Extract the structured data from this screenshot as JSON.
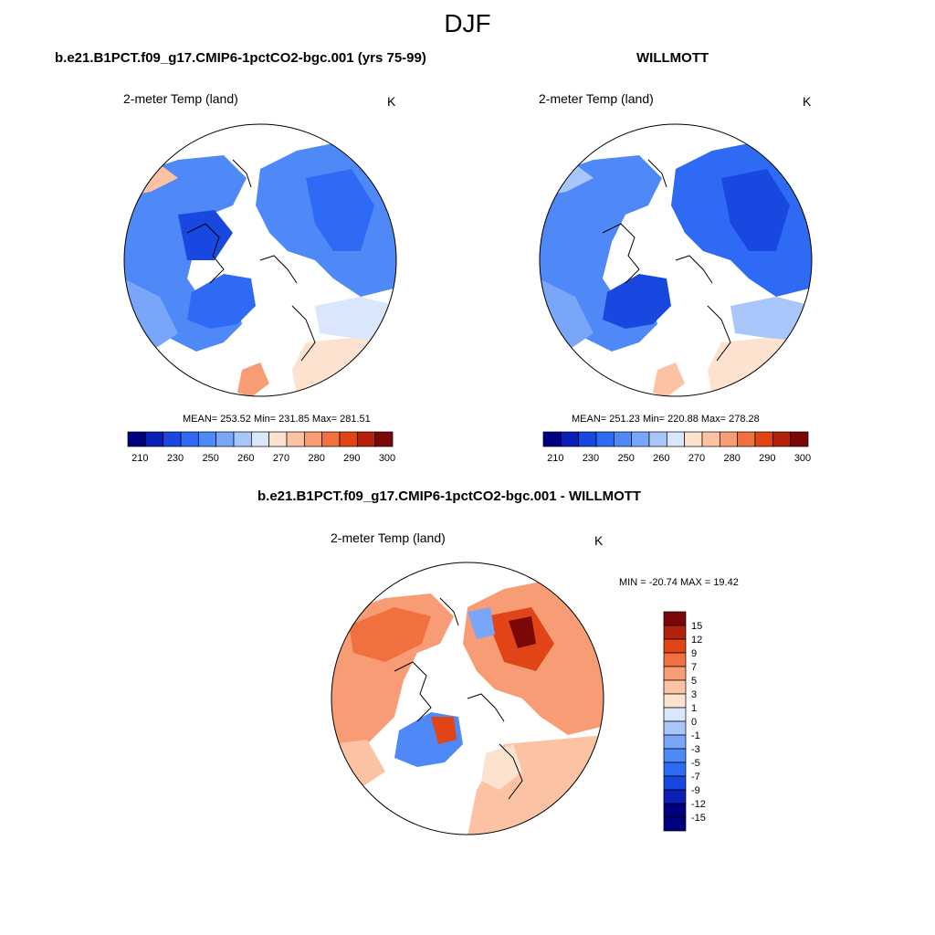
{
  "title": "DJF",
  "colors": {
    "ramp": [
      "#00007f",
      "#0a1fb5",
      "#1848e0",
      "#2f6af5",
      "#4f88f7",
      "#7aa6f9",
      "#a9c6fb",
      "#d9e6fc",
      "#fde2cf",
      "#fbc2a4",
      "#f79c74",
      "#f0703f",
      "#e14416",
      "#b3230b",
      "#7a0806"
    ],
    "coast": "#000000"
  },
  "panel_left": {
    "title": "b.e21.B1PCT.f09_g17.CMIP6-1pctCO2-bgc.001 (yrs 75-99)",
    "variable": "2-meter Temp (land)",
    "units": "K",
    "stats": "MEAN= 253.52  Min= 231.85  Max= 281.51"
  },
  "panel_right": {
    "title": "WILLMOTT",
    "variable": "2-meter Temp (land)",
    "units": "K",
    "stats": "MEAN= 251.23  Min= 220.88  Max= 278.28"
  },
  "panel_diff": {
    "title": "b.e21.B1PCT.f09_g17.CMIP6-1pctCO2-bgc.001 - WILLMOTT",
    "variable": "2-meter Temp (land)",
    "units": "K",
    "stats": "MIN = -20.74 MAX =  19.42"
  },
  "chart_data": [
    {
      "type": "heatmap",
      "title": "b.e21.B1PCT.f09_g17.CMIP6-1pctCO2-bgc.001 (yrs 75-99)",
      "variable": "2-meter Temp (land)",
      "units": "K",
      "mean": 253.52,
      "min": 231.85,
      "max": 281.51,
      "colorbar_levels": [
        205,
        210,
        220,
        230,
        240,
        250,
        255,
        260,
        265,
        270,
        275,
        280,
        285,
        290,
        295,
        300
      ],
      "colorbar_tick_labels": [
        "210",
        "230",
        "250",
        "260",
        "270",
        "280",
        "290",
        "300"
      ]
    },
    {
      "type": "heatmap",
      "title": "WILLMOTT",
      "variable": "2-meter Temp (land)",
      "units": "K",
      "mean": 251.23,
      "min": 220.88,
      "max": 278.28,
      "colorbar_levels": [
        205,
        210,
        220,
        230,
        240,
        250,
        255,
        260,
        265,
        270,
        275,
        280,
        285,
        290,
        295,
        300
      ],
      "colorbar_tick_labels": [
        "210",
        "230",
        "250",
        "260",
        "270",
        "280",
        "290",
        "300"
      ]
    },
    {
      "type": "heatmap",
      "title": "b.e21.B1PCT.f09_g17.CMIP6-1pctCO2-bgc.001 - WILLMOTT",
      "variable": "2-meter Temp (land)",
      "units": "K",
      "min": -20.74,
      "max": 19.42,
      "colorbar_tick_labels": [
        "15",
        "12",
        "9",
        "7",
        "5",
        "3",
        "1",
        "0",
        "-1",
        "-3",
        "-5",
        "-7",
        "-9",
        "-12",
        "-15"
      ]
    }
  ]
}
